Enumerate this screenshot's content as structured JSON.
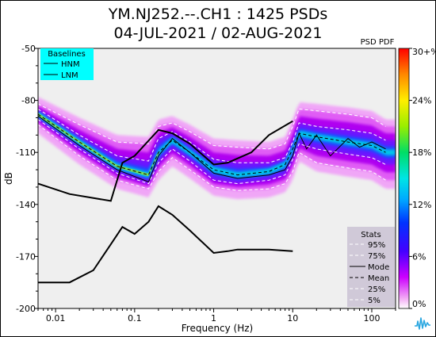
{
  "chart_data": {
    "type": "heatmap",
    "title": "YM.NJ252.--.CH1 : 1425 PSDs",
    "subtitle": "04-JUL-2021 / 02-AUG-2021",
    "xlabel": "Frequency (Hz)",
    "ylabel": "dB",
    "x_scale": "log",
    "xlim": [
      0.006,
      200
    ],
    "ylim": [
      -200,
      -50
    ],
    "x_ticks": [
      {
        "value": 0.01,
        "label": "0.01"
      },
      {
        "value": 0.1,
        "label": "0.1"
      },
      {
        "value": 1,
        "label": "1"
      },
      {
        "value": 10,
        "label": "10"
      },
      {
        "value": 100,
        "label": "100"
      }
    ],
    "y_ticks": [
      {
        "value": -50,
        "label": "-50"
      },
      {
        "value": -80,
        "label": "-80"
      },
      {
        "value": -110,
        "label": "-110"
      },
      {
        "value": -140,
        "label": "-140"
      },
      {
        "value": -170,
        "label": "-170"
      },
      {
        "value": -200,
        "label": "-200"
      }
    ],
    "colorbar": {
      "label": "PSD PDF",
      "ticks": [
        "0%",
        "6%",
        "12%",
        "18%",
        "24%",
        "30+%"
      ],
      "values": [
        0,
        6,
        12,
        18,
        24,
        30
      ]
    },
    "baselines": {
      "title": "Baselines",
      "series": [
        {
          "name": "HNM",
          "x": [
            0.006,
            0.015,
            0.05,
            0.07,
            0.1,
            0.2,
            0.3,
            0.5,
            1,
            1.5,
            3,
            5,
            10
          ],
          "y": [
            -128,
            -134,
            -138,
            -116,
            -112,
            -97,
            -99,
            -105,
            -117,
            -116,
            -110,
            -100,
            -92
          ]
        },
        {
          "name": "LNM",
          "x": [
            0.006,
            0.015,
            0.03,
            0.05,
            0.07,
            0.1,
            0.15,
            0.2,
            0.3,
            0.5,
            1,
            1.5,
            2,
            5,
            10
          ],
          "y": [
            -185,
            -185,
            -178,
            -163,
            -153,
            -157,
            -150,
            -141,
            -146,
            -155,
            -168,
            -167,
            -166,
            -166,
            -167
          ]
        }
      ]
    },
    "stats": {
      "title": "Stats",
      "series": [
        {
          "name": "95%",
          "x": [
            0.006,
            0.02,
            0.06,
            0.15,
            0.2,
            0.3,
            0.5,
            1,
            2,
            5,
            8,
            10,
            12,
            20,
            50,
            100,
            150
          ],
          "y": [
            -82,
            -94,
            -104,
            -105,
            -95,
            -93,
            -98,
            -106,
            -107,
            -108,
            -105,
            -95,
            -85,
            -86,
            -88,
            -90,
            -95
          ]
        },
        {
          "name": "75%",
          "x": [
            0.006,
            0.02,
            0.06,
            0.15,
            0.2,
            0.3,
            0.5,
            1,
            2,
            5,
            8,
            10,
            12,
            20,
            50,
            100,
            150
          ],
          "y": [
            -85,
            -100,
            -112,
            -115,
            -102,
            -98,
            -104,
            -114,
            -116,
            -116,
            -113,
            -104,
            -93,
            -95,
            -97,
            -99,
            -103
          ]
        },
        {
          "name": "Mode",
          "x": [
            0.006,
            0.02,
            0.06,
            0.15,
            0.2,
            0.3,
            0.5,
            1,
            2,
            5,
            8,
            10,
            12,
            15,
            20,
            30,
            50,
            70,
            100,
            150
          ],
          "y": [
            -89,
            -106,
            -120,
            -127,
            -112,
            -102,
            -110,
            -122,
            -125,
            -123,
            -120,
            -112,
            -99,
            -108,
            -100,
            -112,
            -102,
            -107,
            -104,
            -108
          ]
        },
        {
          "name": "Mean",
          "x": [
            0.006,
            0.02,
            0.06,
            0.15,
            0.2,
            0.3,
            0.5,
            1,
            2,
            5,
            8,
            10,
            12,
            20,
            50,
            100,
            150
          ],
          "y": [
            -88,
            -104,
            -118,
            -123,
            -110,
            -103,
            -110,
            -120,
            -123,
            -121,
            -117,
            -108,
            -99,
            -101,
            -104,
            -106,
            -110
          ]
        },
        {
          "name": "25%",
          "x": [
            0.006,
            0.02,
            0.06,
            0.15,
            0.2,
            0.3,
            0.5,
            1,
            2,
            5,
            8,
            10,
            12,
            20,
            50,
            100,
            150
          ],
          "y": [
            -91,
            -108,
            -122,
            -128,
            -116,
            -108,
            -115,
            -126,
            -128,
            -126,
            -123,
            -114,
            -105,
            -108,
            -111,
            -113,
            -117
          ]
        },
        {
          "name": "5%",
          "x": [
            0.006,
            0.02,
            0.06,
            0.15,
            0.2,
            0.3,
            0.5,
            1,
            2,
            5,
            8,
            10,
            12,
            20,
            50,
            100,
            150
          ],
          "y": [
            -94,
            -112,
            -126,
            -131,
            -121,
            -113,
            -120,
            -130,
            -132,
            -131,
            -128,
            -121,
            -110,
            -116,
            -119,
            -121,
            -126
          ]
        }
      ]
    }
  }
}
